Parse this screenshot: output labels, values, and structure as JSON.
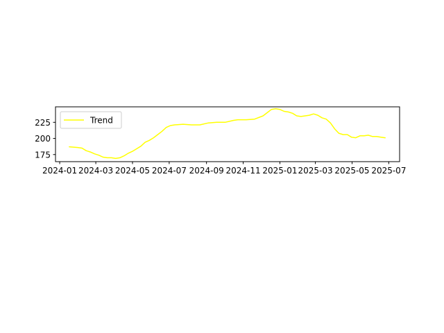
{
  "chart_data": {
    "type": "line",
    "title": "",
    "xlabel": "",
    "ylabel": "",
    "x_axis": {
      "kind": "date",
      "ticks": [
        "2024-01",
        "2024-03",
        "2024-05",
        "2024-07",
        "2024-09",
        "2024-11",
        "2025-01",
        "2025-03",
        "2025-05",
        "2025-07"
      ],
      "range": [
        "2023-12-25",
        "2025-07-19"
      ]
    },
    "y_axis": {
      "ticks": [
        175,
        200,
        225
      ],
      "range": [
        164,
        249
      ]
    },
    "grid": false,
    "legend": {
      "position": "upper-left"
    },
    "series": [
      {
        "name": "Trend",
        "color": "#ffff00",
        "points": [
          [
            "2024-01-17",
            187
          ],
          [
            "2024-01-31",
            186
          ],
          [
            "2024-02-07",
            185
          ],
          [
            "2024-02-14",
            181
          ],
          [
            "2024-02-21",
            179
          ],
          [
            "2024-02-28",
            176
          ],
          [
            "2024-03-06",
            174
          ],
          [
            "2024-03-13",
            171
          ],
          [
            "2024-03-20",
            170
          ],
          [
            "2024-03-27",
            170
          ],
          [
            "2024-04-03",
            169
          ],
          [
            "2024-04-10",
            170
          ],
          [
            "2024-04-17",
            173
          ],
          [
            "2024-04-24",
            177
          ],
          [
            "2024-05-01",
            180
          ],
          [
            "2024-05-08",
            184
          ],
          [
            "2024-05-15",
            188
          ],
          [
            "2024-05-22",
            194
          ],
          [
            "2024-05-29",
            197
          ],
          [
            "2024-06-05",
            201
          ],
          [
            "2024-06-12",
            206
          ],
          [
            "2024-06-19",
            211
          ],
          [
            "2024-06-26",
            217
          ],
          [
            "2024-07-03",
            220
          ],
          [
            "2024-07-10",
            221
          ],
          [
            "2024-07-24",
            222
          ],
          [
            "2024-08-07",
            221
          ],
          [
            "2024-08-21",
            221
          ],
          [
            "2024-09-04",
            224
          ],
          [
            "2024-09-18",
            225
          ],
          [
            "2024-10-02",
            225
          ],
          [
            "2024-10-16",
            228
          ],
          [
            "2024-10-23",
            229
          ],
          [
            "2024-11-06",
            229
          ],
          [
            "2024-11-20",
            230
          ],
          [
            "2024-12-04",
            235
          ],
          [
            "2024-12-11",
            240
          ],
          [
            "2024-12-18",
            245
          ],
          [
            "2024-12-25",
            246
          ],
          [
            "2025-01-01",
            245
          ],
          [
            "2025-01-08",
            242
          ],
          [
            "2025-01-15",
            241
          ],
          [
            "2025-01-22",
            239
          ],
          [
            "2025-01-29",
            235
          ],
          [
            "2025-02-05",
            234
          ],
          [
            "2025-02-12",
            235
          ],
          [
            "2025-02-19",
            236
          ],
          [
            "2025-02-26",
            238
          ],
          [
            "2025-03-05",
            236
          ],
          [
            "2025-03-12",
            232
          ],
          [
            "2025-03-19",
            230
          ],
          [
            "2025-03-26",
            224
          ],
          [
            "2025-04-02",
            215
          ],
          [
            "2025-04-09",
            208
          ],
          [
            "2025-04-16",
            206
          ],
          [
            "2025-04-23",
            206
          ],
          [
            "2025-04-30",
            202
          ],
          [
            "2025-05-07",
            201
          ],
          [
            "2025-05-14",
            204
          ],
          [
            "2025-05-21",
            204
          ],
          [
            "2025-05-28",
            205
          ],
          [
            "2025-06-04",
            203
          ],
          [
            "2025-06-11",
            203
          ],
          [
            "2025-06-18",
            202
          ],
          [
            "2025-06-25",
            201
          ]
        ]
      }
    ]
  }
}
